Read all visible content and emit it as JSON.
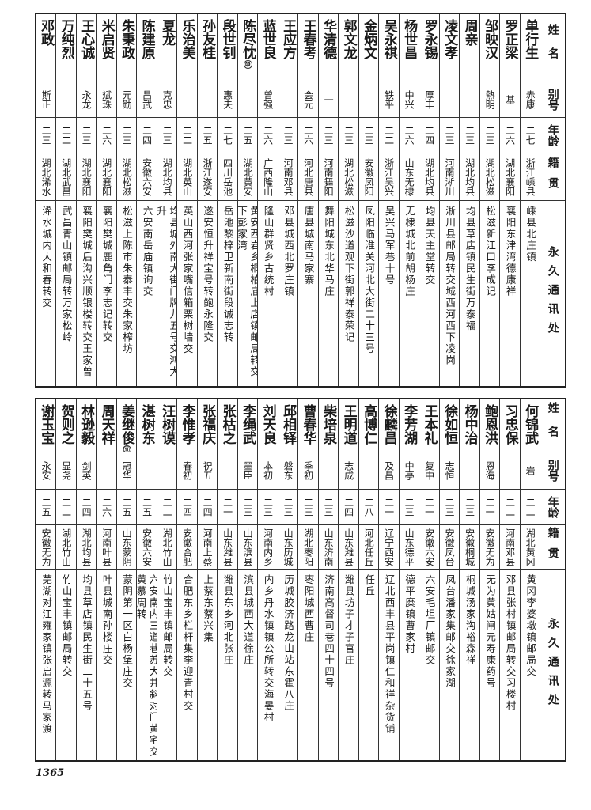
{
  "headers": {
    "name": "姓名",
    "alias": "别号",
    "age": "年龄",
    "origin": "籍贯",
    "address": "永久通讯处"
  },
  "top": [
    {
      "name": "单行生",
      "alias": "赤康",
      "age": "二七",
      "origin": "浙江嵊县",
      "address": "嵊县北庄镇"
    },
    {
      "name": "罗正梁",
      "alias": "基",
      "age": "二六",
      "origin": "湖北襄阳",
      "address": "襄阳东津湾德康祥"
    },
    {
      "name": "邹映汉",
      "alias": "熱明",
      "age": "二三",
      "origin": "湖北松滋",
      "address": "松滋新江口李成记"
    },
    {
      "name": "周亲",
      "alias": "",
      "age": "二三",
      "origin": "湖北均县",
      "address": "均县草店镇民生街万泰福"
    },
    {
      "name": "凌文孝",
      "alias": "",
      "age": "二三",
      "origin": "河南淅川",
      "address": "淅川县邮局转交城西河西下凌岗"
    },
    {
      "name": "罗永锡",
      "alias": "厚丰",
      "age": "二四",
      "origin": "湖北均县",
      "address": "均县天主堂转交"
    },
    {
      "name": "杨世昌",
      "alias": "中兴",
      "age": "二六",
      "origin": "山东无棣",
      "address": "无棣城北前胡杨庄"
    },
    {
      "name": "吴永祺",
      "alias": "铁平",
      "age": "二二",
      "origin": "浙江吴兴",
      "address": "吴兴马军巷十号"
    },
    {
      "name": "金炳文",
      "alias": "",
      "age": "二三",
      "origin": "安徽凤阳",
      "address": "凤阳临淮关河北大街二十三号"
    },
    {
      "name": "郭文龙",
      "alias": "",
      "age": "二三",
      "origin": "湖北松滋",
      "address": "松滋沙道观下街郭祥泰荣记"
    },
    {
      "name": "华清德",
      "alias": "一",
      "age": "二三",
      "origin": "河南舞阳",
      "address": "舞阳城东北华马庄"
    },
    {
      "name": "王春考",
      "alias": "会元",
      "age": "二六",
      "origin": "河北唐县",
      "address": "唐县城南马家寨"
    },
    {
      "name": "王应方",
      "alias": "",
      "age": "二三",
      "origin": "河南邓县",
      "address": "邓县城西北罗庄镇"
    },
    {
      "name": "蓝世良",
      "alias": "曾强",
      "age": "二六",
      "origin": "广西隆山",
      "address": "隆山群贤乡古统村"
    },
    {
      "name": "陈尽忱",
      "note": "⑩",
      "alias": "",
      "age": "二五",
      "origin": "湖北黄安",
      "address": "黄安西岩乡桐柏庙上店镇邮局转交下彭家湾"
    },
    {
      "name": "段世钊",
      "alias": "惠夫",
      "age": "二七",
      "origin": "四川岳池",
      "address": "岳池黎梓卫新南街段诚志转"
    },
    {
      "name": "孙友桂",
      "alias": "",
      "age": "二五",
      "origin": "浙江遂安",
      "address": "遂安恒升祥宝号转鲍永隆交"
    },
    {
      "name": "乐治美",
      "alias": "",
      "age": "二二",
      "origin": "湖北英山",
      "address": "英山西河张家嘴信箱栗树墙交"
    },
    {
      "name": "夏龙",
      "alias": "克忠",
      "age": "二三",
      "origin": "湖北均县",
      "address": "均县城外南大街门牌九五号交鸿大升"
    },
    {
      "name": "陈建原",
      "alias": "昌武",
      "age": "二四",
      "origin": "安徽六安",
      "address": "六安南岳庙镇询交"
    },
    {
      "name": "朱秉政",
      "alias": "元勋",
      "age": "二三",
      "origin": "湖北松滋",
      "address": "松滋上陈市朱泰丰交朱家榨坊"
    },
    {
      "name": "米启贤",
      "alias": "斌珠",
      "age": "二六",
      "origin": "湖北襄阳",
      "address": "襄阳樊城鹿角门李志记转交"
    },
    {
      "name": "王心诚",
      "alias": "永龙",
      "age": "二三",
      "origin": "湖北襄阳",
      "address": "襄阳樊城后沟兴顺银楼转交王家曾"
    },
    {
      "name": "万纯烈",
      "alias": "",
      "age": "二二",
      "origin": "湖北武昌",
      "address": "武昌青山镇邮局转万家松岭"
    },
    {
      "name": "邓政",
      "alias": "斯正",
      "age": "二三",
      "origin": "湖北浠水",
      "address": "浠水城内大和春转交"
    }
  ],
  "bottom": [
    {
      "name": "何锦武",
      "alias": "岩",
      "age": "二二",
      "origin": "湖北黄冈",
      "address": "黄冈李婆墩镇邮局交"
    },
    {
      "name": "习忠保",
      "alias": "",
      "age": "二二",
      "origin": "河南邓县",
      "address": "邓县张村镇邮局转交习楼村"
    },
    {
      "name": "鲍恩洪",
      "alias": "恩海",
      "age": "二一",
      "origin": "安徽无为",
      "address": "无为黄姑闸元寿康药号"
    },
    {
      "name": "杨中治",
      "alias": "",
      "age": "二三",
      "origin": "安徽桐城",
      "address": "桐城汤家沟裕森祥"
    },
    {
      "name": "徐如恒",
      "alias": "志恒",
      "age": "二三",
      "origin": "安徽凤台",
      "address": "凤台潘家集邮交徐家湖"
    },
    {
      "name": "王本礼",
      "alias": "复中",
      "age": "二一",
      "origin": "安徽六安",
      "address": "六安毛坦厂镇邮交"
    },
    {
      "name": "李芳湖",
      "alias": "中亭",
      "age": "二三",
      "origin": "山东德平",
      "address": "德平糜镇曹家村"
    },
    {
      "name": "徐麟昌",
      "alias": "及昌",
      "age": "二一",
      "origin": "辽宁西安",
      "address": "辽北西丰县平岗镇仁和祥杂货铺"
    },
    {
      "name": "高博仁",
      "alias": "",
      "age": "二八",
      "origin": "河北任丘",
      "address": "任丘"
    },
    {
      "name": "王明道",
      "alias": "志成",
      "age": "二四",
      "origin": "山东潍县",
      "address": "潍县坊子才子官庄"
    },
    {
      "name": "柴培泉",
      "alias": "",
      "age": "二三",
      "origin": "山东济南",
      "address": "济南高督司巷四十四号"
    },
    {
      "name": "曹春华",
      "alias": "季初",
      "age": "二三",
      "origin": "湖北枣阳",
      "address": "枣阳城西曹庄"
    },
    {
      "name": "邱相铎",
      "alias": "磐东",
      "age": "二三",
      "origin": "山东历城",
      "address": "历城胶济路龙山站东霍八庄"
    },
    {
      "name": "刘天良",
      "alias": "本初",
      "age": "二三",
      "origin": "河南内乡",
      "address": "内乡丹水镇镇公所转交海晏村"
    },
    {
      "name": "李绳武",
      "alias": "墨臣",
      "age": "二三",
      "origin": "山东滨县",
      "address": "滨县城西大道徐庄"
    },
    {
      "name": "张枯之",
      "alias": "",
      "age": "二一",
      "origin": "山东潍县",
      "address": "潍县东乡河北张庄"
    },
    {
      "name": "张福庆",
      "alias": "祝五",
      "age": "二四",
      "origin": "河南上蔡",
      "address": "上蔡东蔡兴集"
    },
    {
      "name": "李惟孝",
      "alias": "春初",
      "age": "二四",
      "origin": "安徽合肥",
      "address": "合肥东乡栏杆集李迎青村交"
    },
    {
      "name": "汪树谟",
      "alias": "",
      "age": "二二",
      "origin": "湖北竹山",
      "address": "竹山宝丰镇邮局转交"
    },
    {
      "name": "湛树东",
      "alias": "",
      "age": "二五",
      "origin": "安徽六安",
      "address": "六安南内三道巷苏大井斜对门黄宅交黄慕周转"
    },
    {
      "name": "姜继俊",
      "note": "⑪",
      "alias": "冠华",
      "age": "二五",
      "origin": "山东蒙阴",
      "address": "蒙阴第一区白杨堡庄交"
    },
    {
      "name": "周天祥",
      "alias": "",
      "age": "二六",
      "origin": "河南叶县",
      "address": "叶县城南孙楼庄交"
    },
    {
      "name": "林逊毅",
      "alias": "剑英",
      "age": "二四",
      "origin": "湖北均县",
      "address": "均县草店镇民生街二十五号"
    },
    {
      "name": "贺则之",
      "alias": "显尧",
      "age": "二二",
      "origin": "湖北竹山",
      "address": "竹山宝丰镇邮局转交"
    },
    {
      "name": "谢玉宝",
      "alias": "永安",
      "age": "二五",
      "origin": "安徽无为",
      "address": "芜湖对江雍家镇张启源转马家渡"
    }
  ],
  "page_number": "1365"
}
